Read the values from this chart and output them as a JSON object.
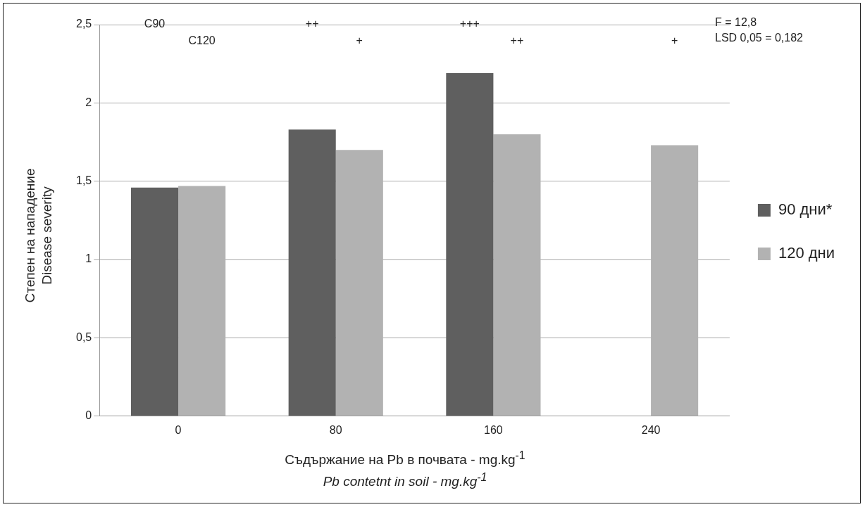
{
  "chart_data": {
    "type": "bar",
    "categories": [
      "0",
      "80",
      "160",
      "240"
    ],
    "series": [
      {
        "name": "90 дни*",
        "color": "#5f5f5f",
        "values": [
          1.46,
          1.83,
          2.19,
          null
        ]
      },
      {
        "name": "120 дни",
        "color": "#b2b2b2",
        "values": [
          1.47,
          1.7,
          1.8,
          1.73
        ]
      }
    ],
    "xlabel": "Съдържание на Pb в почвата - mg.kg$^{-1}$\nPb contetnt in soil - mg.kg$^{-1}$",
    "ylabel": "Степен на нападение\nDisease severity",
    "ylim": [
      0,
      2.5
    ],
    "yticks": [
      0,
      {
        "value": 0.5,
        "label": "0,5"
      },
      1,
      {
        "value": 1.5,
        "label": "1,5"
      },
      2,
      {
        "value": 2.5,
        "label": "2,5"
      }
    ],
    "grid": "y",
    "legend": "right",
    "annotations": [
      "C90",
      "C120",
      "++",
      "+",
      "+++",
      "++",
      "+",
      "F = 12,8",
      "LSD 0,05 = 0,182"
    ]
  }
}
